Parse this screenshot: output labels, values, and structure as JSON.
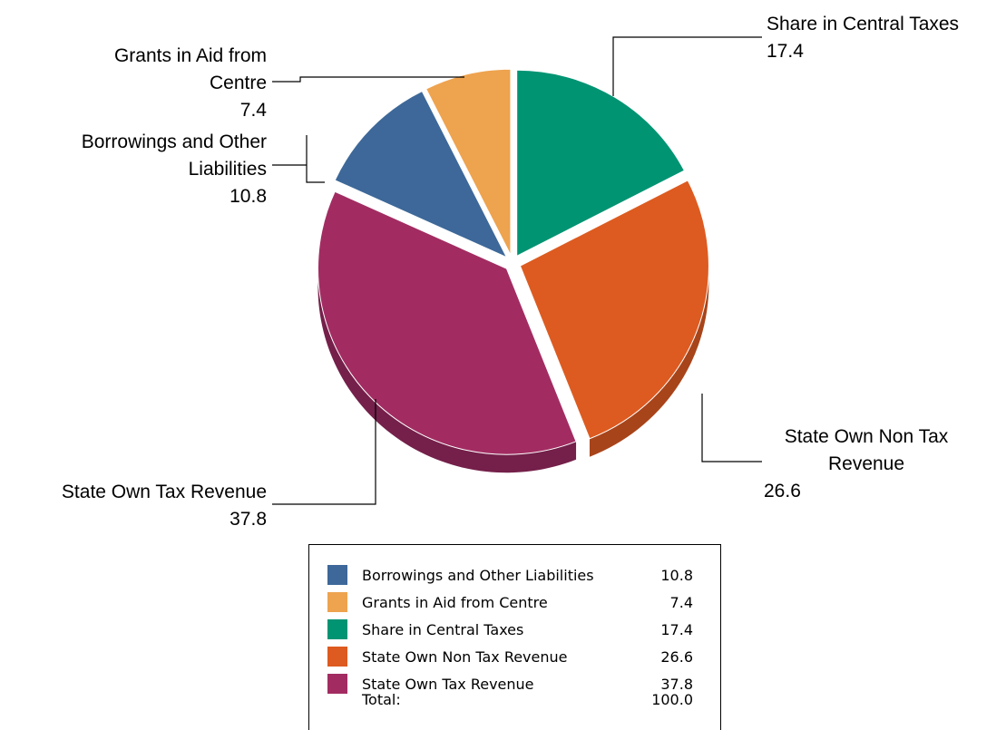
{
  "chart_data": {
    "type": "pie",
    "title": "",
    "slices": [
      {
        "name": "Share in Central Taxes",
        "value": 17.4,
        "color": "#009473",
        "side": "#006b53",
        "label_lines": [
          "Share in Central Taxes"
        ],
        "label_value": "17.4"
      },
      {
        "name": "State Own Non Tax Revenue",
        "value": 26.6,
        "color": "#DD5B20",
        "side": "#a8441a",
        "label_lines": [
          "State Own Non Tax",
          "Revenue"
        ],
        "label_value": "26.6"
      },
      {
        "name": "State Own Tax Revenue",
        "value": 37.8,
        "color": "#A22C62",
        "side": "#74204a",
        "label_lines": [
          "State Own Tax Revenue"
        ],
        "label_value": "37.8"
      },
      {
        "name": "Borrowings and Other Liabilities",
        "value": 10.8,
        "color": "#3D6899",
        "side": "#2a4a6f",
        "label_lines": [
          "Borrowings and Other",
          "Liabilities"
        ],
        "label_value": "10.8"
      },
      {
        "name": "Grants in Aid from Centre",
        "value": 7.4,
        "color": "#EEA34F",
        "side": "#b57a38",
        "label_lines": [
          "Grants in Aid from",
          "Centre"
        ],
        "label_value": "7.4"
      }
    ],
    "legend": {
      "placement": "bottom",
      "rows": [
        {
          "name": "Borrowings and Other Liabilities",
          "value": "10.8",
          "color": "#3D6899"
        },
        {
          "name": "Grants in Aid from Centre",
          "value": "7.4",
          "color": "#EEA34F"
        },
        {
          "name": "Share in Central Taxes",
          "value": "17.4",
          "color": "#009473"
        },
        {
          "name": "State Own Non Tax Revenue",
          "value": "26.6",
          "color": "#DD5B20"
        },
        {
          "name": "State Own Tax Revenue",
          "value": "37.8",
          "color": "#A22C62"
        }
      ],
      "total_label": "Total:",
      "total_value": "100.0"
    }
  }
}
